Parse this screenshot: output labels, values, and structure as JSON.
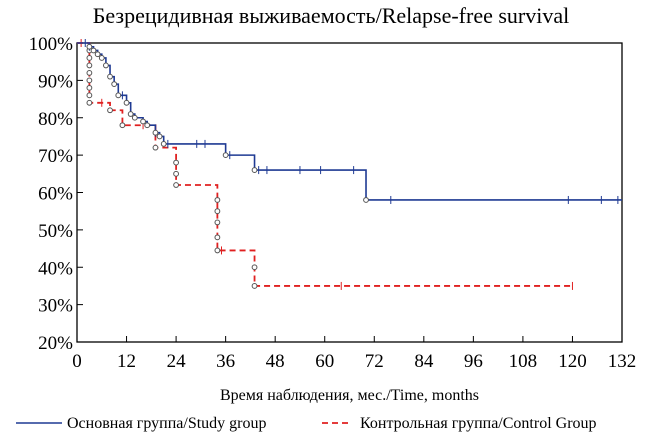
{
  "chart_data": {
    "type": "line",
    "subtype": "kaplan-meier",
    "title": "Безрецидивная выживаемость/Relapse-free survival",
    "xlabel": "Время наблюдения, мес./Time, months",
    "ylabel": "",
    "xlim": [
      0,
      132
    ],
    "ylim": [
      20,
      100
    ],
    "x_ticks": [
      0,
      12,
      24,
      36,
      48,
      60,
      72,
      84,
      96,
      108,
      120,
      132
    ],
    "y_ticks": [
      20,
      30,
      40,
      50,
      60,
      70,
      80,
      90,
      100
    ],
    "y_tick_labels": [
      "20%",
      "30%",
      "40%",
      "50%",
      "60%",
      "70%",
      "80%",
      "90%",
      "100%"
    ],
    "grid": false,
    "legend_position": "bottom",
    "series": [
      {
        "name": "Основная группа/Study group",
        "color": "#1f3a93",
        "style": "solid",
        "steps": [
          [
            0,
            100
          ],
          [
            3,
            99
          ],
          [
            4,
            98
          ],
          [
            5,
            97
          ],
          [
            6,
            96
          ],
          [
            7,
            94
          ],
          [
            8,
            91
          ],
          [
            9,
            89
          ],
          [
            10,
            86
          ],
          [
            12,
            84
          ],
          [
            13,
            81
          ],
          [
            14,
            80
          ],
          [
            16,
            79
          ],
          [
            17,
            78
          ],
          [
            19,
            76
          ],
          [
            20,
            75
          ],
          [
            21,
            73
          ],
          [
            36,
            70
          ],
          [
            43,
            66
          ],
          [
            70,
            58
          ],
          [
            132,
            58
          ]
        ],
        "censored": [
          2,
          3,
          11,
          19,
          22,
          29,
          31,
          37,
          44,
          46,
          54,
          59,
          67,
          76,
          119,
          127,
          131
        ],
        "events": [
          3,
          4,
          5,
          6,
          7,
          8,
          9,
          10,
          12,
          13,
          14,
          16,
          17,
          19,
          20,
          21,
          36,
          43,
          70
        ]
      },
      {
        "name": "Контрольная группа/Control Group",
        "color": "#e02020",
        "style": "dashed",
        "steps": [
          [
            0,
            100
          ],
          [
            3,
            84
          ],
          [
            8,
            82
          ],
          [
            11,
            78
          ],
          [
            19,
            72
          ],
          [
            24,
            62
          ],
          [
            34,
            44.5
          ],
          [
            43,
            35
          ],
          [
            120,
            35
          ]
        ],
        "censored": [
          1,
          6,
          16,
          35,
          64,
          120
        ],
        "events": [
          3,
          8,
          11,
          19,
          24,
          34,
          43
        ],
        "drop_marks": [
          [
            3,
            [
              98,
              96,
              94,
              92,
              90,
              88,
              86
            ]
          ],
          [
            24,
            [
              68,
              65
            ]
          ],
          [
            34,
            [
              58,
              55,
              52,
              48
            ]
          ],
          [
            43,
            [
              40
            ]
          ]
        ]
      }
    ]
  }
}
